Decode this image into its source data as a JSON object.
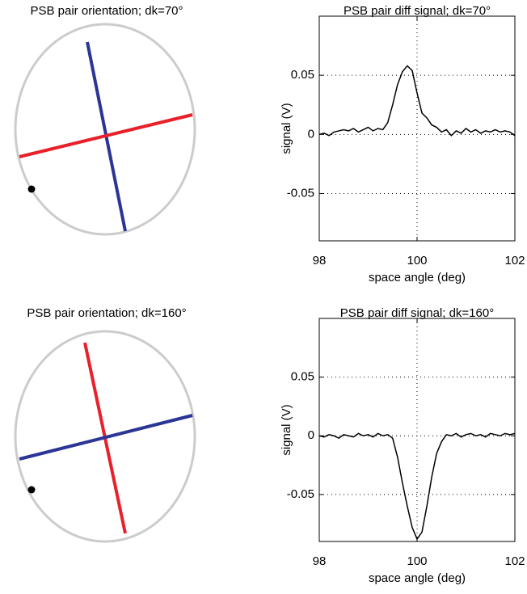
{
  "chart_data": [
    {
      "type": "orientation",
      "title": "PSB pair orientation; dk=70°"
    },
    {
      "type": "line",
      "title": "PSB pair diff signal; dk=70°",
      "x_label": "space angle (deg)",
      "y_label": "signal (V)",
      "xlim": [
        98,
        102
      ],
      "xticks": [
        98,
        100,
        102
      ],
      "ylim": [
        -0.09,
        0.1
      ],
      "yticks": [
        -0.05,
        0,
        0.05
      ],
      "grid": true,
      "x": [
        98.0,
        98.1,
        98.2,
        98.3,
        98.4,
        98.5,
        98.6,
        98.7,
        98.8,
        98.9,
        99.0,
        99.1,
        99.2,
        99.3,
        99.4,
        99.5,
        99.6,
        99.7,
        99.8,
        99.9,
        100.0,
        100.1,
        100.2,
        100.3,
        100.4,
        100.5,
        100.6,
        100.7,
        100.8,
        100.9,
        101.0,
        101.1,
        101.2,
        101.3,
        101.4,
        101.5,
        101.6,
        101.7,
        101.8,
        101.9,
        102.0
      ],
      "series": [
        {
          "color": "#000000",
          "values": [
            0,
            0.001,
            -0.001,
            0.002,
            0.003,
            0.004,
            0.003,
            0.005,
            0.002,
            0.004,
            0.006,
            0.003,
            0.005,
            0.004,
            0.01,
            0.025,
            0.042,
            0.053,
            0.058,
            0.054,
            0.035,
            0.018,
            0.014,
            0.008,
            0.006,
            0.002,
            0.004,
            -0.001,
            0.003,
            0.001,
            0.005,
            0.002,
            0.004,
            0.001,
            0.003,
            0.002,
            0.004,
            0.002,
            0.003,
            0.002,
            -0.001
          ]
        }
      ]
    },
    {
      "type": "orientation",
      "title": "PSB pair orientation; dk=160°"
    },
    {
      "type": "line",
      "title": "PSB pair diff signal; dk=160°",
      "x_label": "space angle (deg)",
      "y_label": "signal (V)",
      "xlim": [
        98,
        102
      ],
      "xticks": [
        98,
        100,
        102
      ],
      "ylim": [
        -0.09,
        0.1
      ],
      "yticks": [
        -0.05,
        0,
        0.05
      ],
      "grid": true,
      "x": [
        98.0,
        98.1,
        98.2,
        98.3,
        98.4,
        98.5,
        98.6,
        98.7,
        98.8,
        98.9,
        99.0,
        99.1,
        99.2,
        99.3,
        99.4,
        99.5,
        99.6,
        99.7,
        99.8,
        99.9,
        100.0,
        100.1,
        100.2,
        100.3,
        100.4,
        100.5,
        100.6,
        100.7,
        100.8,
        100.9,
        101.0,
        101.1,
        101.2,
        101.3,
        101.4,
        101.5,
        101.6,
        101.7,
        101.8,
        101.9,
        102.0
      ],
      "series": [
        {
          "color": "#000000",
          "values": [
            0,
            -0.001,
            0.001,
            0,
            -0.002,
            0.001,
            0,
            -0.001,
            0.002,
            0,
            0.001,
            -0.001,
            0.002,
            0,
            0.001,
            -0.002,
            -0.018,
            -0.04,
            -0.06,
            -0.078,
            -0.088,
            -0.082,
            -0.06,
            -0.035,
            -0.015,
            -0.005,
            0.001,
            0,
            0.002,
            -0.001,
            0.001,
            0.002,
            0,
            0.001,
            -0.001,
            0.002,
            0.001,
            0,
            0.002,
            0.001,
            0.002
          ]
        }
      ]
    }
  ]
}
